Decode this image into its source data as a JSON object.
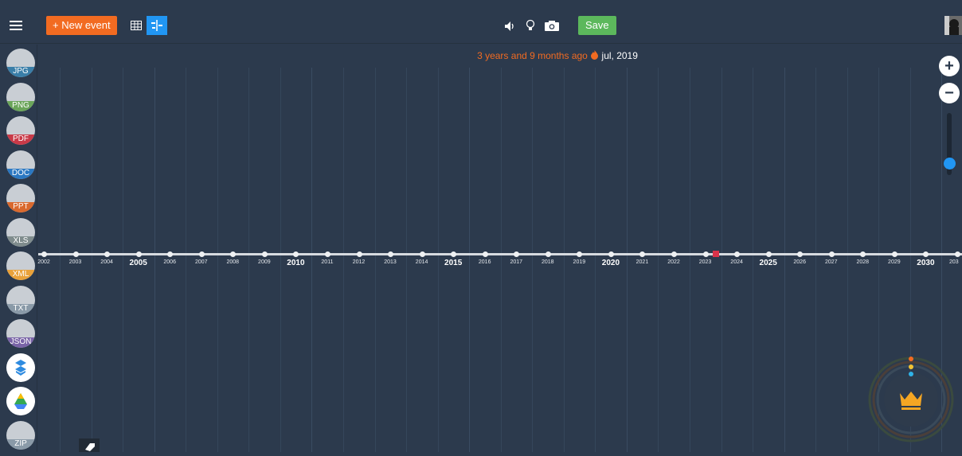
{
  "topbar": {
    "new_event_label": "+ New event",
    "save_label": "Save",
    "icons": [
      "menu-icon",
      "table-view-icon",
      "timeline-view-icon",
      "volume-icon",
      "lightbulb-icon",
      "camera-icon"
    ]
  },
  "timeline": {
    "ago_text": "3 years and 9 months ago",
    "date_text": "jul, 2019",
    "years": [
      "2002",
      "2003",
      "2004",
      "2005",
      "2006",
      "2007",
      "2008",
      "2009",
      "2010",
      "2011",
      "2012",
      "2013",
      "2014",
      "2015",
      "2016",
      "2017",
      "2018",
      "2019",
      "2020",
      "2021",
      "2022",
      "2023",
      "2024",
      "2025",
      "2026",
      "2027",
      "2028",
      "2029",
      "2030",
      "203"
    ],
    "major_years": [
      "2005",
      "2010",
      "2015",
      "2020",
      "2025",
      "2030"
    ]
  },
  "sidebar": {
    "exports": [
      {
        "label": "JPG",
        "color": "#3a7ea8",
        "icon": "image-icon"
      },
      {
        "label": "PNG",
        "color": "#6ba55a",
        "icon": "image-icon"
      },
      {
        "label": "PDF",
        "color": "#c83a48",
        "icon": "pdf-icon"
      },
      {
        "label": "DOC",
        "color": "#2b78c2",
        "icon": "doc-icon"
      },
      {
        "label": "PPT",
        "color": "#d9692e",
        "icon": "ppt-icon"
      },
      {
        "label": "XLS",
        "color": "#7f8c8d",
        "icon": "xls-icon"
      },
      {
        "label": "XML",
        "color": "#e9a23b",
        "icon": "xml-icon"
      },
      {
        "label": "TXT",
        "color": "#8a9aa8",
        "icon": "txt-icon"
      },
      {
        "label": "JSON",
        "color": "#7a64a8",
        "icon": "json-icon"
      },
      {
        "label": "",
        "color": "#2e8be0",
        "icon": "dropbox-icon"
      },
      {
        "label": "",
        "color": "#2b78c2",
        "icon": "google-drive-icon"
      },
      {
        "label": "ZIP",
        "color": "#8a9aa8",
        "icon": "zip-icon"
      }
    ]
  },
  "colors": {
    "background": "#2c3a4d",
    "accent_orange": "#f26b21",
    "accent_blue": "#2196f3",
    "save_green": "#5cb85c",
    "marker_red": "#d9334a"
  }
}
